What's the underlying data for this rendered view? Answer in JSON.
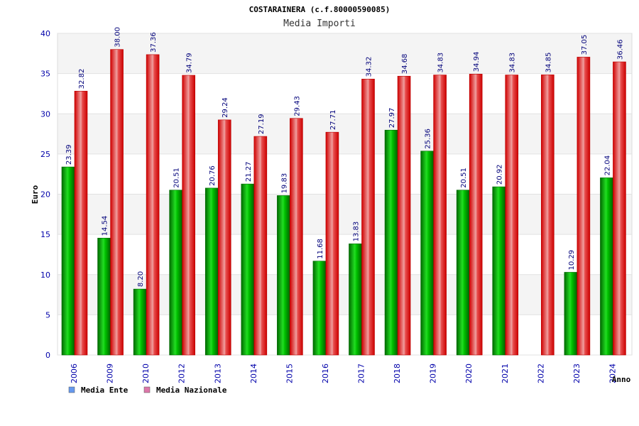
{
  "chart_data": {
    "type": "bar",
    "title": "COSTARAINERA (c.f.80000590085)",
    "subtitle": "Media Importi",
    "ylabel": "Euro",
    "xlabel": "Anno",
    "ylim": [
      0,
      40
    ],
    "yticks": [
      0,
      5,
      10,
      15,
      20,
      25,
      30,
      35,
      40
    ],
    "grid": true,
    "legend_position": "bottom-left",
    "categories": [
      "2006",
      "2009",
      "2010",
      "2012",
      "2013",
      "2014",
      "2015",
      "2016",
      "2017",
      "2018",
      "2019",
      "2020",
      "2021",
      "2022",
      "2023",
      "2024"
    ],
    "series": [
      {
        "name": "Media Ente",
        "color": "#00b000",
        "legend_color": "#6699ee",
        "values": [
          23.39,
          14.54,
          8.2,
          20.51,
          20.76,
          21.27,
          19.83,
          11.68,
          13.83,
          27.97,
          25.36,
          20.51,
          20.92,
          null,
          10.29,
          22.04
        ],
        "labels": [
          "23.39",
          "14.54",
          "8.20",
          "20.51",
          "20.76",
          "21.27",
          "19.83",
          "11.68",
          "13.83",
          "27.97",
          "25.36",
          "20.51",
          "20.92",
          "",
          "10.29",
          "22.04"
        ]
      },
      {
        "name": "Media Nazionale",
        "color": "#ee1111",
        "legend_color": "#dd77aa",
        "values": [
          32.82,
          38.0,
          37.36,
          34.79,
          29.24,
          27.19,
          29.43,
          27.71,
          34.32,
          34.68,
          34.83,
          34.94,
          34.83,
          34.85,
          37.05,
          36.46
        ],
        "labels": [
          "32.82",
          "38.00",
          "37.36",
          "34.79",
          "29.24",
          "27.19",
          "29.43",
          "27.71",
          "34.32",
          "34.68",
          "34.83",
          "34.94",
          "34.83",
          "34.85",
          "37.05",
          "36.46"
        ]
      }
    ]
  }
}
